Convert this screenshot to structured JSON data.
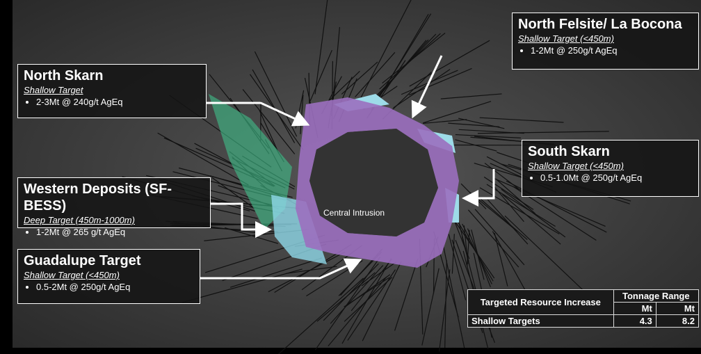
{
  "callouts": [
    {
      "title": "North Skarn",
      "subtitle": "Shallow Target",
      "bullet": "2-3Mt @ 240g/t AgEq"
    },
    {
      "title": "Western Deposits (SF-BESS)",
      "subtitle": "Deep Target (450m-1000m)",
      "bullet": "1-2Mt @ 265 g/t AgEq"
    },
    {
      "title": "Guadalupe Target",
      "subtitle": "Shallow Target (<450m)",
      "bullet": "0.5-2Mt @ 250g/t AgEq"
    },
    {
      "title": "North Felsite/ La Bocona",
      "subtitle": "Shallow Target (<450m)",
      "bullet": "1-2Mt @ 250g/t AgEq"
    },
    {
      "title": "South Skarn",
      "subtitle": "Shallow Target (<450m)",
      "bullet": "0.5-1.0Mt @ 250g/t AgEq"
    }
  ],
  "center_label": "Central Intrusion",
  "table": {
    "header": [
      "Targeted Resource Increase",
      "Tonnage Range"
    ],
    "units": [
      "Mt",
      "Mt"
    ],
    "rows": [
      [
        "Shallow Targets",
        4.3,
        8.2
      ]
    ]
  }
}
